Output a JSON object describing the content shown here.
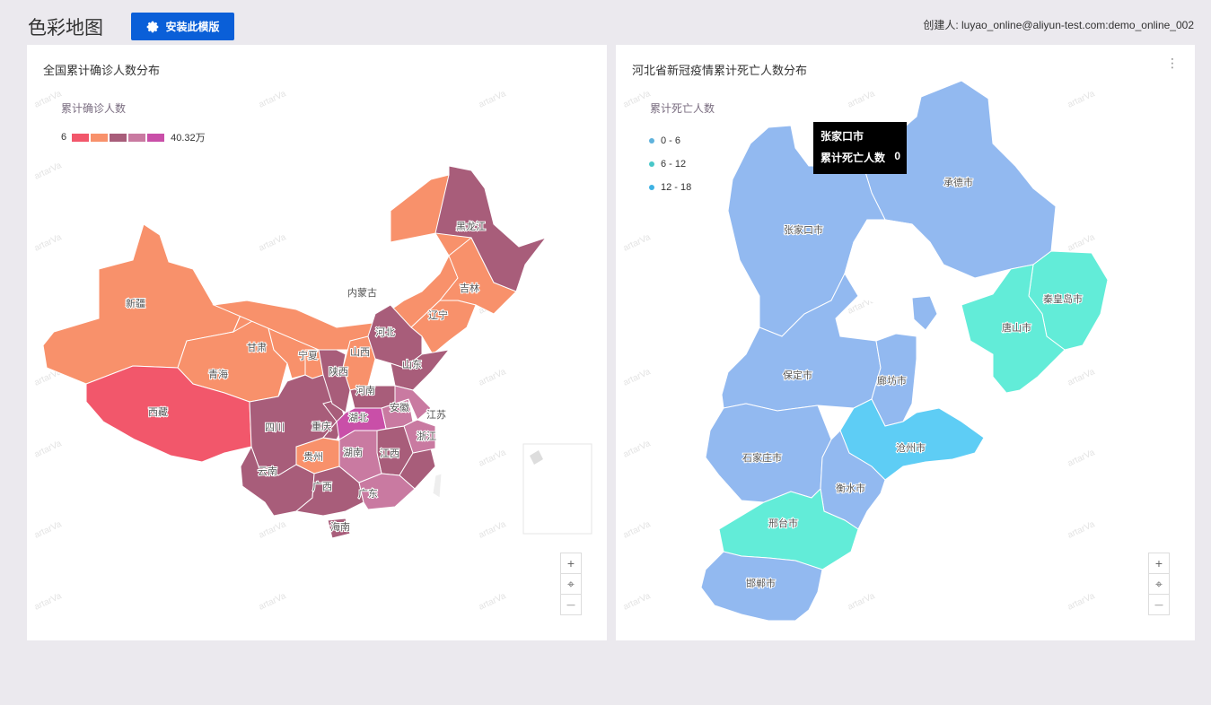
{
  "page": {
    "title": "色彩地图",
    "install_button": "安装此模版",
    "creator": "创建人: luyao_online@aliyun-test.com:demo_online_002"
  },
  "left_card": {
    "title": "全国累计确诊人数分布",
    "legend_title": "累计确诊人数",
    "legend_min": "6",
    "legend_max": "40.32万",
    "legend_colors": [
      "#f2576b",
      "#f8916b",
      "#a85d7a",
      "#c97aa1",
      "#c94fa8"
    ],
    "labels": [
      "黑龙江",
      "吉林",
      "辽宁",
      "内蒙古",
      "新疆",
      "西藏",
      "青海",
      "甘肃",
      "宁夏",
      "陕西",
      "山西",
      "河北",
      "山东",
      "河南",
      "湖北",
      "安徽",
      "江苏",
      "浙江",
      "江西",
      "湖南",
      "四川",
      "重庆",
      "贵州",
      "云南",
      "广西",
      "广东",
      "海南"
    ]
  },
  "right_card": {
    "title": "河北省新冠疫情累计死亡人数分布",
    "more": "⋮",
    "legend_title": "累计死亡人数",
    "legend": [
      {
        "label": "0 - 6",
        "color": "#5fb2dc"
      },
      {
        "label": "6 - 12",
        "color": "#48c7c9"
      },
      {
        "label": "12 - 18",
        "color": "#3eb2e3"
      }
    ],
    "labels": [
      "承德市",
      "张家口市",
      "秦皇岛市",
      "唐山市",
      "保定市",
      "廊坊市",
      "沧州市",
      "石家庄市",
      "衡水市",
      "邢台市",
      "邯郸市"
    ],
    "tooltip": {
      "city": "张家口市",
      "metric": "累计死亡人数",
      "value": "0"
    }
  },
  "controls": {
    "zoom_in": "+",
    "locate": "⌖",
    "zoom_out": "—"
  },
  "watermark": "artarVa"
}
